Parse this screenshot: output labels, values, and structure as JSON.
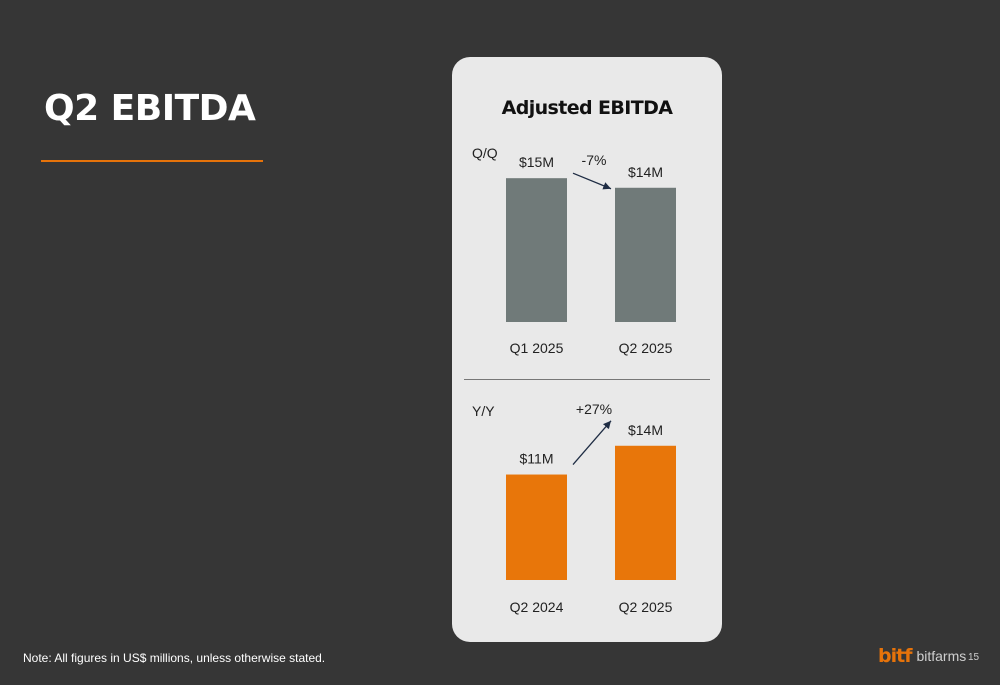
{
  "slide": {
    "title": "Q2 EBITDA",
    "footnote": "Note: All figures in US$ millions, unless otherwise stated.",
    "page_number": "15",
    "logo_mark": "bitf",
    "logo_word": "bitfarms",
    "accent_color": "#e6730a",
    "background_color": "#363636"
  },
  "card": {
    "title": "Adjusted EBITDA"
  },
  "chart_data": [
    {
      "type": "bar",
      "section_label": "Q/Q",
      "categories": [
        "Q1 2025",
        "Q2 2025"
      ],
      "values": [
        15,
        14
      ],
      "data_labels": [
        "$15M",
        "$14M"
      ],
      "change_label": "-7%",
      "bar_color": "#707a79",
      "ylim": [
        0,
        16.5
      ]
    },
    {
      "type": "bar",
      "section_label": "Y/Y",
      "categories": [
        "Q2 2024",
        "Q2 2025"
      ],
      "values": [
        11,
        14
      ],
      "data_labels": [
        "$11M",
        "$14M"
      ],
      "change_label": "+27%",
      "bar_color": "#e8760a",
      "ylim": [
        0,
        16.5
      ]
    }
  ]
}
